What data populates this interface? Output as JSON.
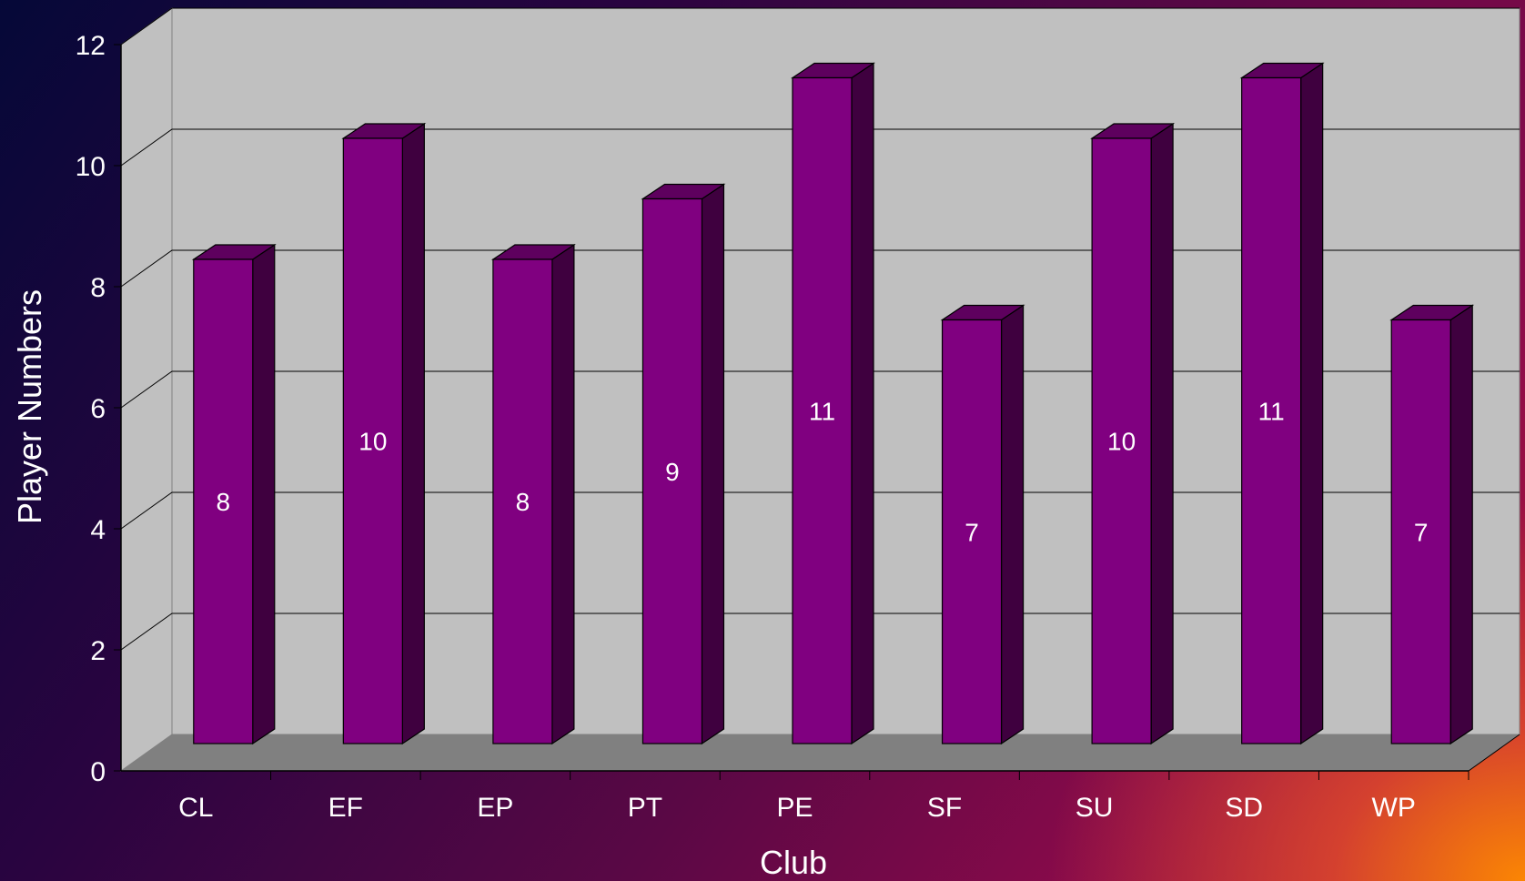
{
  "chart_data": {
    "type": "bar",
    "categories": [
      "CL",
      "EF",
      "EP",
      "PT",
      "PE",
      "SF",
      "SU",
      "SD",
      "WP"
    ],
    "values": [
      8,
      10,
      8,
      9,
      11,
      7,
      10,
      11,
      7
    ],
    "data_labels": [
      "8",
      "10",
      "8",
      "9",
      "11",
      "7",
      "10",
      "11",
      "7"
    ],
    "xlabel": "Club",
    "ylabel": "Player Numbers",
    "ylim": [
      0,
      12
    ],
    "yticks": [
      "0",
      "2",
      "4",
      "6",
      "8",
      "10",
      "12"
    ],
    "grid": true,
    "style": "3d-column"
  },
  "colors": {
    "bar_front": "#800080",
    "bar_side": "#3f003f",
    "bar_top": "#5e005e",
    "back_wall": "#c0c0c0",
    "side_wall": "#c0c0c0",
    "floor": "#808080",
    "text": "#ffffff"
  }
}
